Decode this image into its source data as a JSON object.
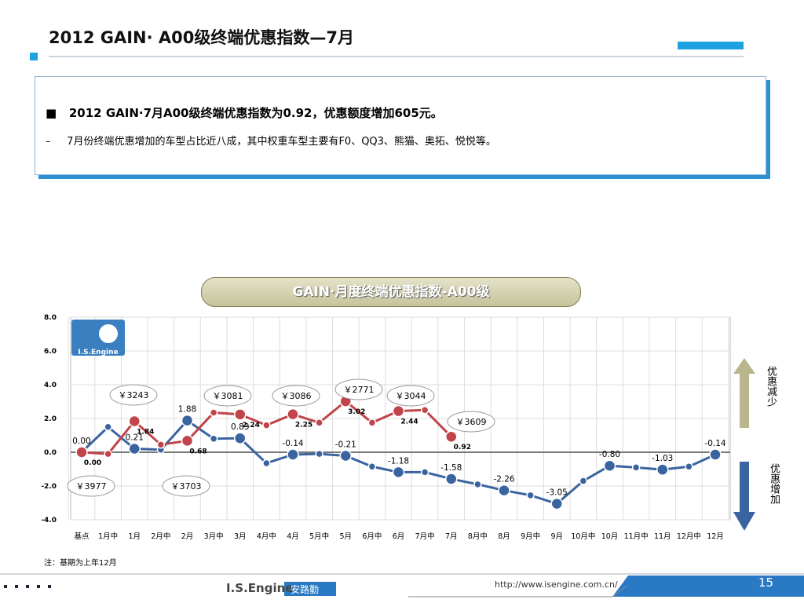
{
  "title": "2012 GAIN· A00级终端优惠指数—7月",
  "bullets": [
    "2012 GAIN·7月A00级终端优惠指数为0.92，优惠额度增加605元。",
    "7月份终端优惠增加的车型占比近八成，其中权重车型主要有F0、QQ3、熊猫、奥拓、悦悦等。"
  ],
  "chart_data": {
    "type": "line",
    "title": "GAIN·月度终端优惠指数-A00级",
    "categories": [
      "基点",
      "1月中",
      "1月",
      "2月中",
      "2月",
      "3月中",
      "3月",
      "4月中",
      "4月",
      "5月中",
      "5月",
      "6月中",
      "6月",
      "7月中",
      "7月",
      "8月中",
      "8月",
      "9月中",
      "9月",
      "10月中",
      "10月",
      "11月中",
      "11月",
      "12月中",
      "12月"
    ],
    "series": [
      {
        "color": "#3a64a0",
        "values": [
          0,
          1.5,
          0.21,
          0.15,
          1.88,
          0.8,
          0.83,
          -0.65,
          -0.14,
          -0.1,
          -0.21,
          -0.85,
          -1.18,
          -1.18,
          -1.58,
          -1.9,
          -2.26,
          -2.55,
          -3.05,
          -1.7,
          -0.8,
          -0.9,
          -1.03,
          -0.85,
          -0.14
        ],
        "value_labels": [
          "0.00",
          null,
          "0.21",
          null,
          "1.88",
          null,
          "0.83",
          null,
          "-0.14",
          null,
          "-0.21",
          null,
          "-1.18",
          null,
          "-1.58",
          null,
          "-2.26",
          null,
          "-3.05",
          null,
          "-0.80",
          null,
          "-1.03",
          null,
          "-0.14"
        ]
      },
      {
        "color": "#c0444a",
        "values": [
          0,
          -0.1,
          1.84,
          0.45,
          0.68,
          2.35,
          2.24,
          1.6,
          2.25,
          1.75,
          3.02,
          1.75,
          2.44,
          2.5,
          0.92,
          null,
          null,
          null,
          null,
          null,
          null,
          null,
          null,
          null,
          null
        ],
        "value_labels": [
          "0.00",
          null,
          "1.84",
          null,
          "0.68",
          null,
          "2.24",
          null,
          "2.25",
          null,
          "3.02",
          null,
          "2.44",
          null,
          "0.92",
          null,
          null,
          null,
          null,
          null,
          null,
          null,
          null,
          null,
          null
        ]
      }
    ],
    "ylim": [
      -4,
      8
    ],
    "yticks": [
      {
        "value": -4,
        "label": "-4.0"
      },
      {
        "value": -2,
        "label": "-2.0"
      },
      {
        "value": 0,
        "label": "0.0"
      },
      {
        "value": 2,
        "label": "2.0"
      },
      {
        "value": 4,
        "label": "4.0"
      },
      {
        "value": 6,
        "label": "6.0"
      },
      {
        "value": 8,
        "label": "8.0"
      }
    ],
    "grid": true,
    "annotations": [
      "￥3977",
      "￥3243",
      "￥3703",
      "￥3081",
      "￥3086",
      "￥2771",
      "￥3044",
      "￥3609"
    ],
    "logo": "I.S.Engine",
    "up_label": "优惠减少",
    "down_label": "优惠增加"
  },
  "note": "注：基期为上年12月",
  "footer": {
    "brand": "I.S.Engine",
    "brand_cn": "安路勤",
    "url": "http://www.isengine.com.cn/",
    "page": "15"
  }
}
